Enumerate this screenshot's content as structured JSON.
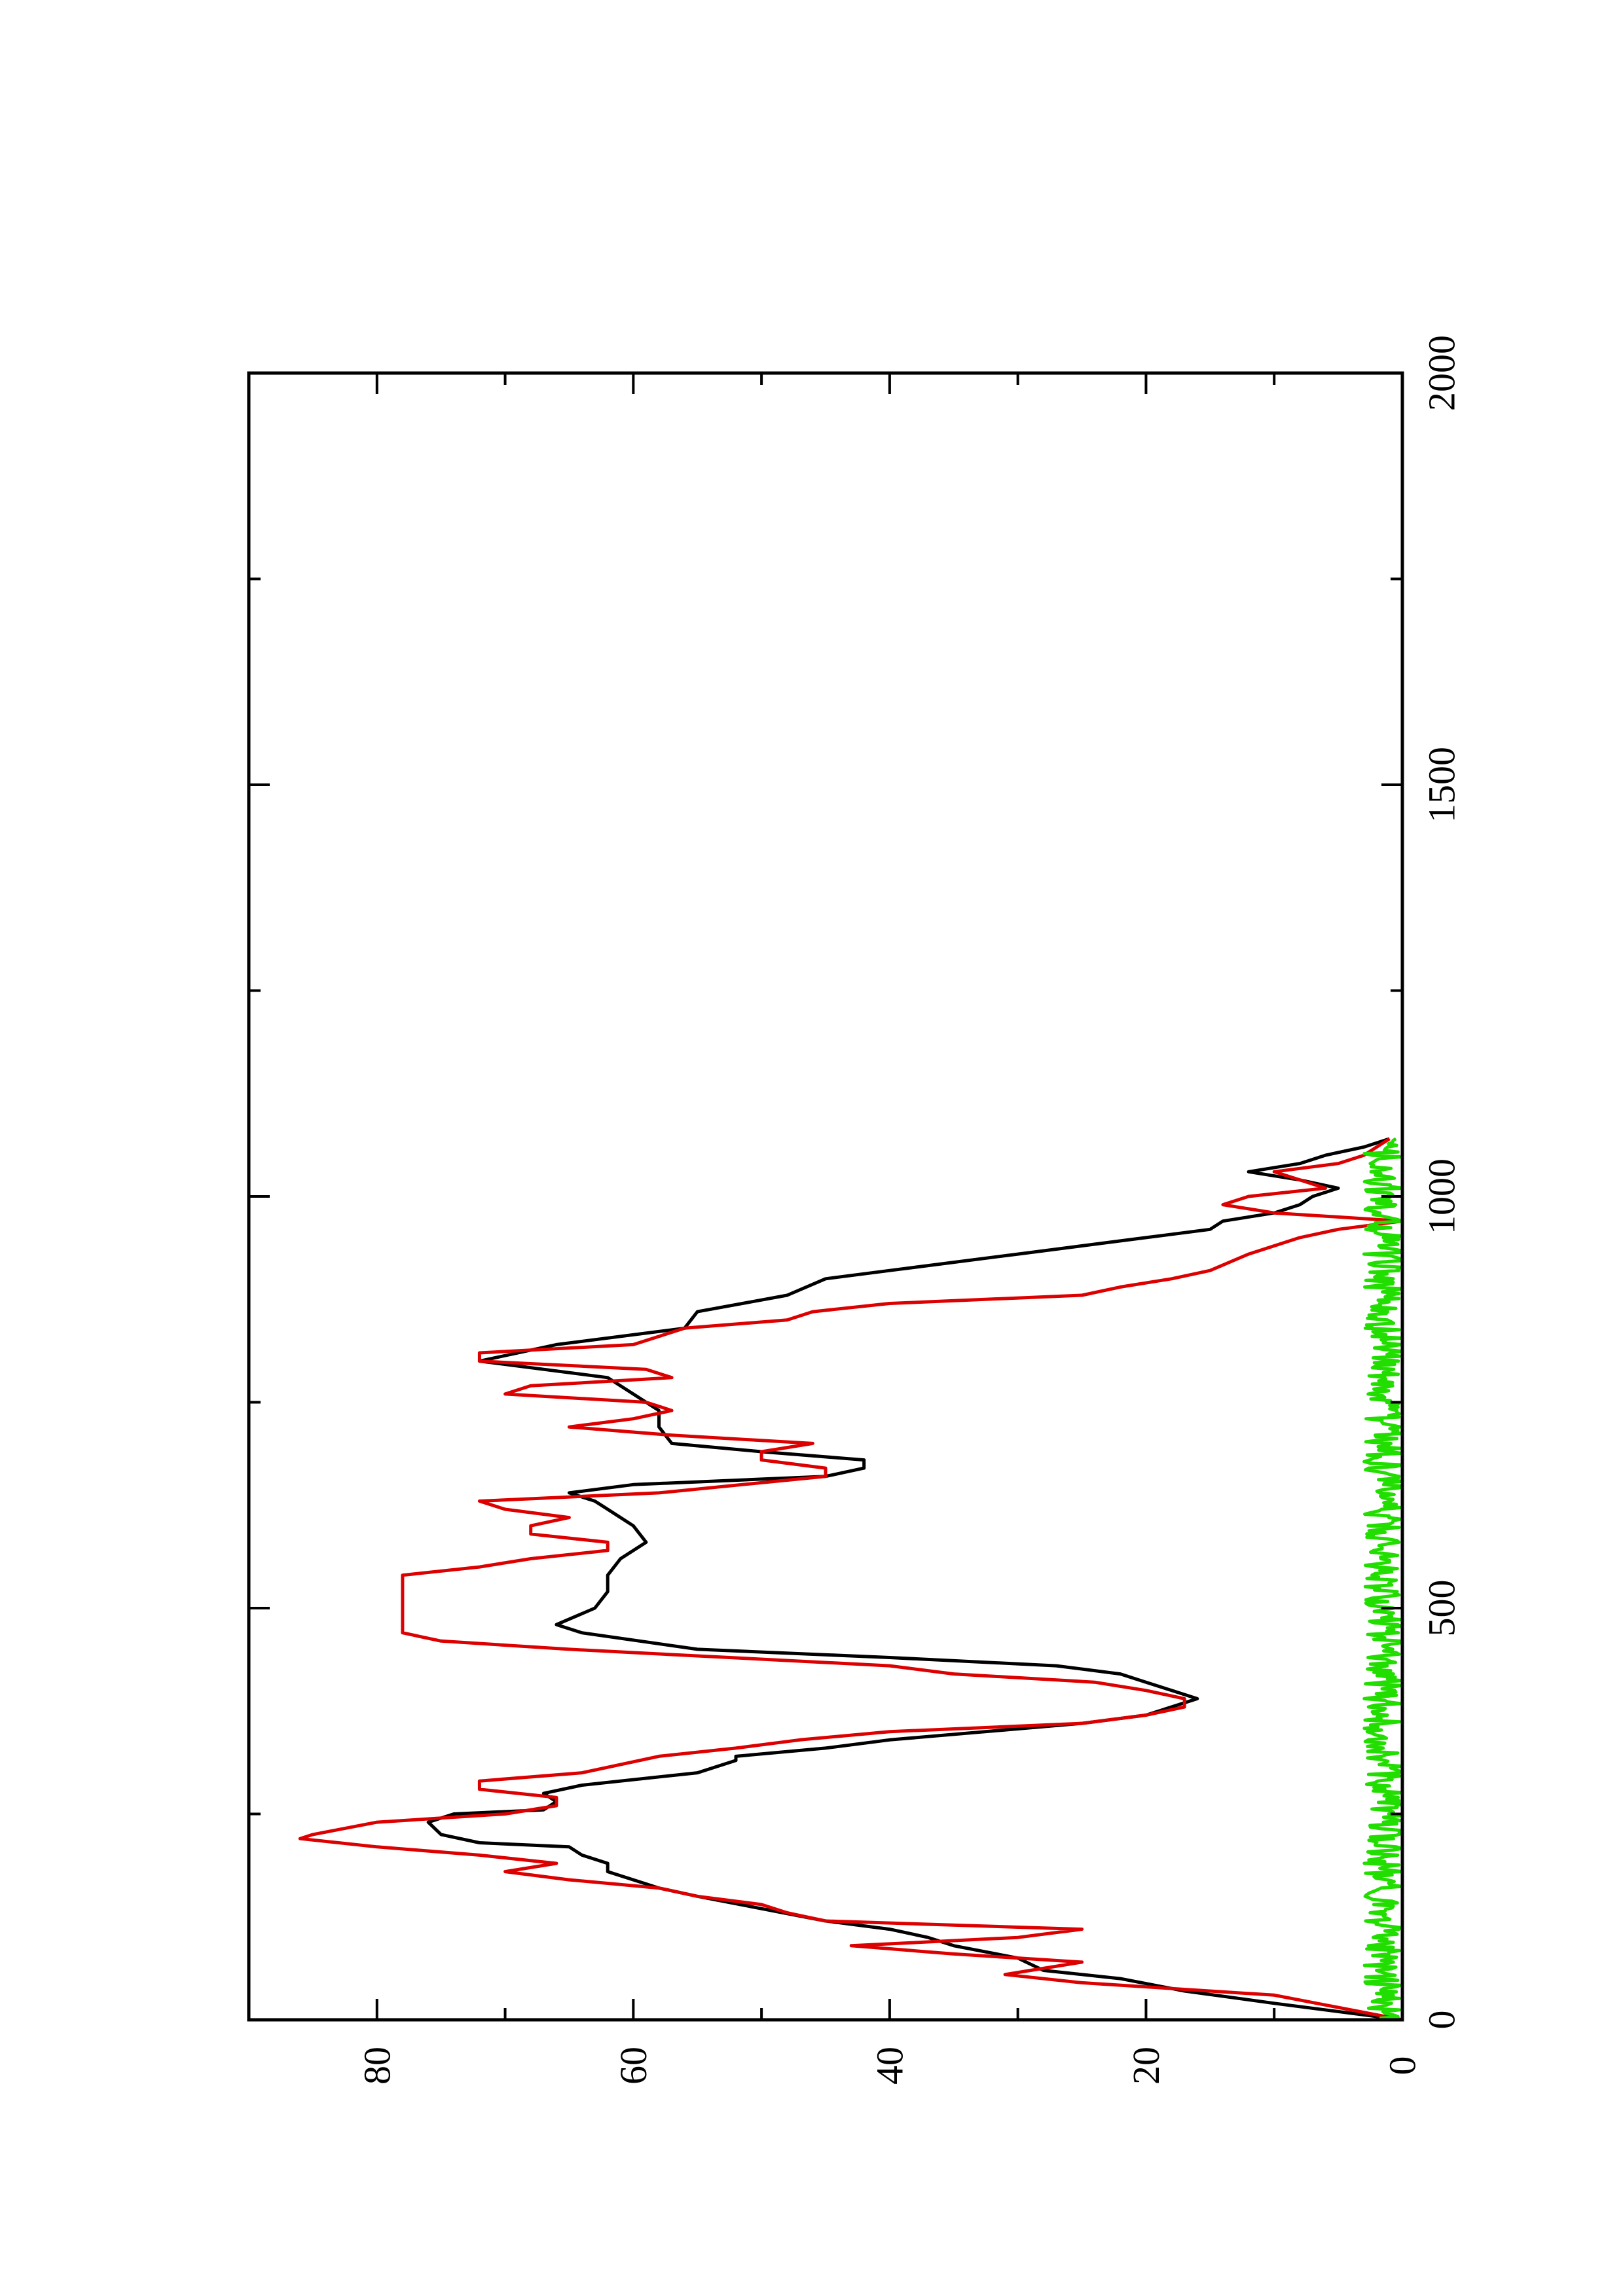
{
  "chart_data": {
    "type": "line",
    "orientation": "rotated-90-clockwise",
    "xlim": [
      0,
      2000
    ],
    "ylim": [
      0,
      90
    ],
    "x_ticks": [
      0,
      500,
      1000,
      1500,
      2000
    ],
    "x_minor_ticks": [
      250,
      750,
      1250,
      1750
    ],
    "y_ticks": [
      0,
      20,
      40,
      60,
      80
    ],
    "y_minor_ticks": [
      10,
      30,
      50,
      70
    ],
    "grid": false,
    "title": "",
    "xlabel": "",
    "ylabel": "",
    "series": [
      {
        "color": "#000000",
        "x": [
          0,
          20,
          35,
          50,
          60,
          75,
          90,
          100,
          110,
          120,
          135,
          150,
          160,
          170,
          180,
          190,
          200,
          210,
          215,
          225,
          240,
          250,
          255,
          265,
          275,
          285,
          300,
          315,
          320,
          330,
          340,
          360,
          370,
          390,
          400,
          410,
          420,
          430,
          440,
          450,
          470,
          480,
          500,
          520,
          540,
          560,
          580,
          600,
          610,
          620,
          630,
          640,
          650,
          660,
          670,
          680,
          690,
          700,
          720,
          740,
          760,
          780,
          800,
          820,
          840,
          860,
          880,
          900,
          910,
          930,
          950,
          960,
          970,
          980,
          990,
          1000,
          1010,
          1020,
          1030,
          1040,
          1050,
          1060,
          1070
        ],
        "y": [
          0,
          10,
          17,
          22,
          28,
          30,
          35,
          37,
          40,
          45,
          50,
          55,
          58,
          60,
          62,
          62,
          64,
          65,
          72,
          75,
          76,
          74,
          67,
          66,
          67,
          64,
          55,
          52,
          52,
          45,
          40,
          25,
          20,
          16,
          18,
          20,
          22,
          27,
          40,
          55,
          64,
          66,
          63,
          62,
          62,
          61,
          59,
          60,
          61,
          62,
          63,
          65,
          60,
          45,
          42,
          42,
          50,
          57,
          58,
          58,
          60,
          62,
          72,
          66,
          56,
          55,
          48,
          45,
          40,
          30,
          20,
          15,
          14,
          10,
          8,
          7,
          5,
          8,
          12,
          8,
          6,
          3,
          1
        ]
      },
      {
        "color": "#dd0000",
        "x": [
          0,
          30,
          45,
          55,
          60,
          70,
          80,
          90,
          100,
          110,
          120,
          130,
          140,
          150,
          160,
          170,
          180,
          190,
          200,
          210,
          220,
          225,
          240,
          250,
          260,
          270,
          280,
          290,
          300,
          320,
          330,
          340,
          350,
          360,
          370,
          380,
          390,
          400,
          410,
          420,
          430,
          450,
          460,
          470,
          480,
          490,
          500,
          520,
          540,
          550,
          560,
          570,
          580,
          590,
          600,
          610,
          620,
          630,
          640,
          660,
          670,
          680,
          690,
          700,
          710,
          720,
          730,
          740,
          750,
          760,
          770,
          780,
          790,
          800,
          810,
          820,
          840,
          850,
          860,
          870,
          880,
          890,
          900,
          910,
          930,
          950,
          960,
          970,
          980,
          990,
          1000,
          1010,
          1020,
          1030,
          1040,
          1050,
          1060,
          1070
        ],
        "y": [
          0,
          10,
          25,
          31,
          29,
          25,
          35,
          43,
          30,
          25,
          45,
          48,
          50,
          55,
          58,
          65,
          70,
          66,
          72,
          80,
          86,
          85,
          80,
          70,
          66,
          66,
          72,
          72,
          64,
          58,
          52,
          47,
          40,
          25,
          20,
          17,
          17,
          20,
          24,
          35,
          40,
          65,
          75,
          78,
          78,
          78,
          78,
          78,
          78,
          72,
          68,
          62,
          62,
          68,
          68,
          65,
          70,
          72,
          58,
          45,
          45,
          50,
          50,
          46,
          57,
          65,
          60,
          57,
          59,
          70,
          68,
          57,
          59,
          72,
          72,
          60,
          56,
          48,
          46,
          40,
          25,
          22,
          18,
          15,
          12,
          8,
          5,
          0,
          10,
          14,
          12,
          6,
          8,
          10,
          5,
          3,
          2,
          1
        ]
      },
      {
        "color": "#22dd00",
        "style": "noise",
        "x_range": [
          0,
          1070
        ],
        "y_range": [
          0,
          3
        ]
      }
    ]
  }
}
